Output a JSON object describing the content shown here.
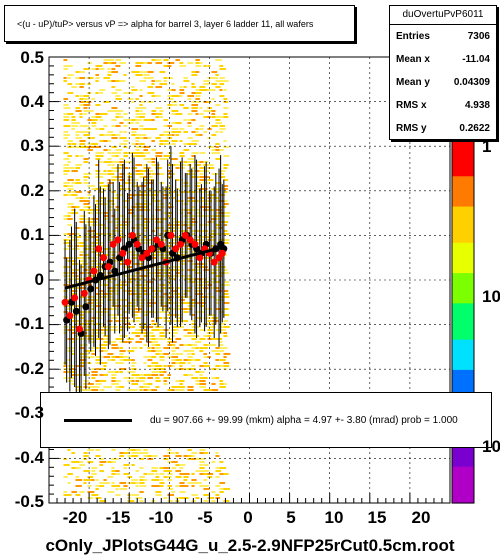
{
  "title": "<(u - uP)/tuP> versus   vP => alpha for barrel 3, layer 6 ladder 11, all wafers",
  "stats": {
    "name": "duOvertuPvP6011",
    "rows": [
      {
        "label": "Entries",
        "value": "7306"
      },
      {
        "label": "Mean x",
        "value": "-11.04"
      },
      {
        "label": "Mean y",
        "value": "0.04309"
      },
      {
        "label": "RMS x",
        "value": "4.938"
      },
      {
        "label": "RMS y",
        "value": "0.2622"
      }
    ]
  },
  "fit_text": "du =  907.66 +- 99.99 (mkm) alpha =    4.97 +-  3.80 (mrad) prob = 1.000",
  "footer": "cOnly_JPlotsG44G_u_2.5-2.9NFP25rCut0.5cm.root",
  "palette_labels": [
    "1",
    "10",
    "10"
  ],
  "colors": {
    "fit_line": "#000000",
    "black_points": "#000000",
    "red_points": "#ff0000",
    "grid": "#000000"
  },
  "chart_data": {
    "type": "scatter",
    "title": "<(u - uP)/tuP> versus   vP => alpha for barrel 3, layer 6 ladder 11, all wafers",
    "xlim": [
      -25,
      25
    ],
    "ylim": [
      -0.5,
      0.5
    ],
    "x_ticks": [
      "-20",
      "-15",
      "-10",
      "-5",
      "0",
      "5",
      "10",
      "15",
      "20"
    ],
    "y_ticks": [
      "0.5",
      "0.4",
      "0.3",
      "0.2",
      "0.1",
      "0",
      "-0.1",
      "-0.2",
      "-0.3",
      "-0.4",
      "-0.5"
    ],
    "grid": true,
    "fit_line": {
      "x": [
        -23,
        -3
      ],
      "y": [
        -0.018,
        0.075
      ]
    },
    "series": [
      {
        "color": "black",
        "x": [
          -22.8,
          -22.2,
          -21.6,
          -21.0,
          -20.4,
          -19.8,
          -19.2,
          -18.6,
          -18.0,
          -17.4,
          -16.8,
          -16.2,
          -15.6,
          -15.0,
          -14.4,
          -13.8,
          -13.2,
          -12.6,
          -12.0,
          -11.4,
          -10.8,
          -10.2,
          -9.6,
          -9.0,
          -8.4,
          -7.8,
          -7.2,
          -6.6,
          -6.0,
          -5.4,
          -4.8,
          -4.2,
          -3.6,
          -3.2
        ],
        "y": [
          -0.09,
          -0.05,
          -0.07,
          -0.12,
          -0.06,
          -0.02,
          0.0,
          0.01,
          0.03,
          0.04,
          0.02,
          0.05,
          0.07,
          0.08,
          0.09,
          0.07,
          0.06,
          0.05,
          0.07,
          0.08,
          0.07,
          0.1,
          0.06,
          0.05,
          0.09,
          0.1,
          0.08,
          0.07,
          0.06,
          0.08,
          0.06,
          0.07,
          0.08,
          0.07
        ]
      },
      {
        "color": "red",
        "x": [
          -23.0,
          -22.4,
          -21.8,
          -21.2,
          -20.6,
          -20.0,
          -19.4,
          -18.8,
          -18.2,
          -17.6,
          -17.0,
          -16.4,
          -15.8,
          -15.2,
          -14.6,
          -14.0,
          -13.4,
          -12.8,
          -12.2,
          -11.6,
          -11.0,
          -10.4,
          -9.8,
          -9.2,
          -8.6,
          -8.0,
          -7.4,
          -6.8,
          -6.2,
          -5.6,
          -5.0,
          -4.4,
          -3.8,
          -3.4
        ],
        "y": [
          -0.05,
          -0.08,
          -0.04,
          -0.11,
          -0.03,
          0.0,
          0.02,
          0.07,
          0.05,
          0.03,
          0.08,
          0.09,
          0.06,
          0.04,
          0.1,
          0.08,
          0.05,
          0.06,
          0.07,
          0.09,
          0.08,
          0.04,
          0.1,
          0.07,
          0.08,
          0.1,
          0.09,
          0.08,
          0.05,
          0.07,
          0.06,
          0.04,
          0.05,
          0.06
        ]
      }
    ]
  }
}
